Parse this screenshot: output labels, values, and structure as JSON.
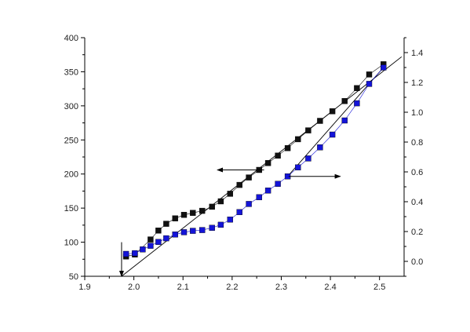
{
  "chart_data": {
    "type": "scatter",
    "title": "",
    "xlabel": "",
    "ylabel_left": "",
    "ylabel_right": "",
    "xlim": [
      1.9,
      2.55
    ],
    "ylim_left": [
      50,
      400
    ],
    "ylim_right": [
      -0.1,
      1.5
    ],
    "x_ticks": [
      "1.9",
      "2.0",
      "2.1",
      "2.2",
      "2.3",
      "2.4",
      "2.5"
    ],
    "y_left_ticks": [
      "50",
      "100",
      "150",
      "200",
      "250",
      "300",
      "350",
      "400"
    ],
    "y_right_ticks": [
      "0.0",
      "0.2",
      "0.4",
      "0.6",
      "0.8",
      "1.0",
      "1.2",
      "1.4"
    ],
    "grid": false,
    "legend": "none",
    "series": [
      {
        "axis": "left",
        "color": "#111111",
        "marker": "square",
        "points": [
          [
            1.984,
            79
          ],
          [
            2.002,
            82
          ],
          [
            2.034,
            104
          ],
          [
            2.05,
            117
          ],
          [
            2.066,
            127
          ],
          [
            2.084,
            135
          ],
          [
            2.102,
            140
          ],
          [
            2.12,
            143
          ],
          [
            2.139,
            146
          ],
          [
            2.159,
            152
          ],
          [
            2.177,
            160
          ],
          [
            2.196,
            171
          ],
          [
            2.215,
            184
          ],
          [
            2.234,
            195
          ],
          [
            2.255,
            206
          ],
          [
            2.273,
            216
          ],
          [
            2.293,
            227
          ],
          [
            2.313,
            238
          ],
          [
            2.334,
            251
          ],
          [
            2.355,
            264
          ],
          [
            2.379,
            278
          ],
          [
            2.404,
            292
          ],
          [
            2.429,
            307
          ],
          [
            2.454,
            326
          ],
          [
            2.479,
            346
          ],
          [
            2.508,
            361
          ]
        ]
      },
      {
        "axis": "right",
        "color": "#1414d8",
        "marker": "square",
        "points": [
          [
            1.984,
            0.05
          ],
          [
            2.002,
            0.055
          ],
          [
            2.018,
            0.08
          ],
          [
            2.034,
            0.105
          ],
          [
            2.05,
            0.13
          ],
          [
            2.066,
            0.155
          ],
          [
            2.084,
            0.18
          ],
          [
            2.102,
            0.195
          ],
          [
            2.12,
            0.205
          ],
          [
            2.139,
            0.21
          ],
          [
            2.159,
            0.225
          ],
          [
            2.177,
            0.245
          ],
          [
            2.196,
            0.28
          ],
          [
            2.215,
            0.33
          ],
          [
            2.234,
            0.385
          ],
          [
            2.255,
            0.43
          ],
          [
            2.273,
            0.475
          ],
          [
            2.293,
            0.52
          ],
          [
            2.313,
            0.57
          ],
          [
            2.334,
            0.63
          ],
          [
            2.355,
            0.69
          ],
          [
            2.379,
            0.765
          ],
          [
            2.404,
            0.85
          ],
          [
            2.429,
            0.945
          ],
          [
            2.454,
            1.06
          ],
          [
            2.479,
            1.19
          ],
          [
            2.508,
            1.3
          ]
        ]
      }
    ],
    "fit_lines": [
      {
        "axis": "left",
        "from": [
          1.975,
          50
        ],
        "to": [
          2.545,
          372
        ],
        "color": "#000000"
      },
      {
        "axis": "right",
        "from": [
          2.313,
          0.57
        ],
        "to": [
          2.508,
          1.3
        ],
        "color": "#000000"
      }
    ],
    "arrows": [
      {
        "label": "left-axis-arrow",
        "axis": "left",
        "from": [
          2.265,
          206
        ],
        "to": [
          2.17,
          206
        ]
      },
      {
        "label": "right-axis-arrow",
        "axis": "right",
        "from": [
          2.315,
          0.57
        ],
        "to": [
          2.42,
          0.57
        ]
      },
      {
        "label": "x-intercept-arrow",
        "axis": "left",
        "from": [
          1.975,
          100
        ],
        "to": [
          1.975,
          50
        ]
      }
    ]
  }
}
